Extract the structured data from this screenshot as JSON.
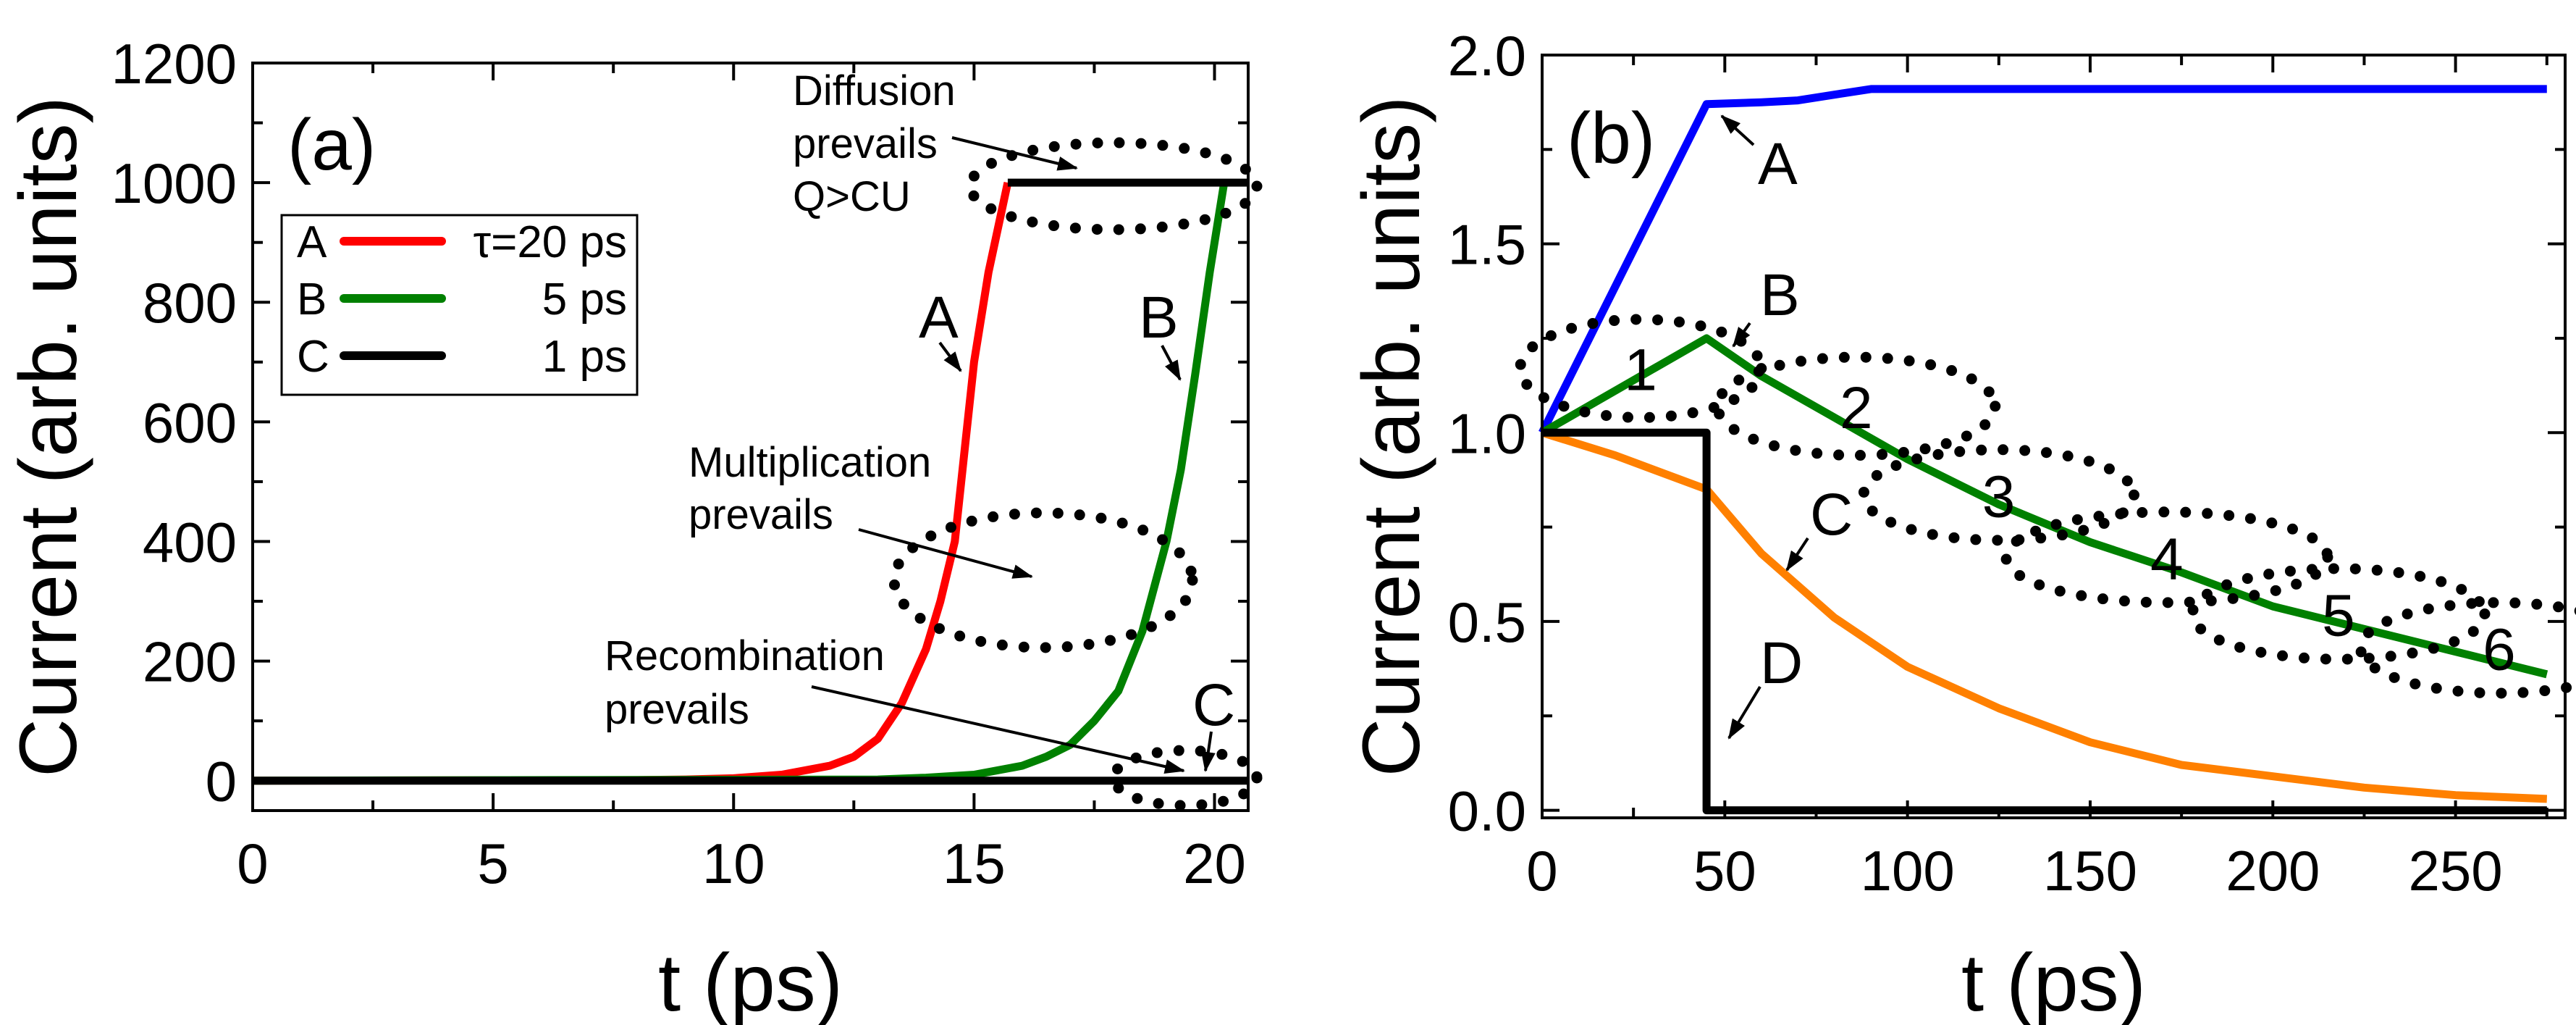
{
  "chart_data": [
    {
      "type": "line",
      "panel_label": "(a)",
      "xlabel": "t (ps)",
      "ylabel": "Current (arb. units)",
      "xlim": [
        0,
        20.7
      ],
      "ylim": [
        -50,
        1200
      ],
      "xticks": [
        0,
        5,
        10,
        15,
        20
      ],
      "yticks": [
        0,
        200,
        400,
        600,
        800,
        1000,
        1200
      ],
      "legend": {
        "placement": "top-left",
        "entries": [
          {
            "key": "A",
            "label": "τ=20 ps",
            "color": "#ff0000"
          },
          {
            "key": "B",
            "label": "5 ps",
            "color": "#008000"
          },
          {
            "key": "C",
            "label": "1 ps",
            "color": "#000000"
          }
        ]
      },
      "series": [
        {
          "name": "A",
          "color": "#ff0000",
          "x": [
            0,
            8,
            9,
            10,
            11,
            12,
            12.5,
            13,
            13.5,
            14,
            14.3,
            14.6,
            14.8,
            15,
            15.3,
            15.7
          ],
          "y": [
            0,
            1,
            2,
            4,
            10,
            25,
            40,
            70,
            130,
            220,
            300,
            400,
            550,
            700,
            850,
            1000
          ]
        },
        {
          "name": "B",
          "color": "#008000",
          "x": [
            0,
            13,
            14,
            15,
            16,
            16.5,
            17,
            17.5,
            18,
            18.5,
            19,
            19.3,
            19.6,
            19.9,
            20.2
          ],
          "y": [
            0,
            2,
            5,
            10,
            25,
            40,
            60,
            100,
            150,
            250,
            400,
            520,
            680,
            850,
            1000
          ]
        },
        {
          "name": "C",
          "color": "#000000",
          "x": [
            0,
            20.7
          ],
          "y": [
            0,
            0
          ]
        },
        {
          "name": "C-saturation",
          "color": "#000000",
          "x": [
            15.7,
            20.7
          ],
          "y": [
            1000,
            1000
          ]
        }
      ],
      "annotations": [
        {
          "id": "diffusion",
          "lines": [
            "Diffusion",
            "prevails",
            "Q>CU"
          ]
        },
        {
          "id": "multiplication",
          "lines": [
            "Multiplication",
            "prevails"
          ]
        },
        {
          "id": "recombination",
          "lines": [
            "Recombination",
            "prevails"
          ]
        },
        {
          "id": "curve-A",
          "lines": [
            "A"
          ]
        },
        {
          "id": "curve-B",
          "lines": [
            "B"
          ]
        },
        {
          "id": "curve-C",
          "lines": [
            "C"
          ]
        }
      ]
    },
    {
      "type": "line",
      "panel_label": "(b)",
      "xlabel": "t (ps)",
      "ylabel": "Current (arb. units)",
      "xlim": [
        0,
        280
      ],
      "ylim": [
        -0.02,
        2.0
      ],
      "xticks": [
        0,
        50,
        100,
        150,
        200,
        250
      ],
      "yticks": [
        "0.0",
        "0.5",
        "1.0",
        "1.5",
        "2.0"
      ],
      "series": [
        {
          "name": "A",
          "color": "#0000ff",
          "x": [
            0,
            45,
            60,
            70,
            80,
            90,
            275
          ],
          "y": [
            1.0,
            1.87,
            1.875,
            1.88,
            1.895,
            1.91,
            1.91
          ]
        },
        {
          "name": "B",
          "color": "#008000",
          "x": [
            0,
            45,
            60,
            80,
            100,
            125,
            150,
            175,
            200,
            225,
            250,
            275
          ],
          "y": [
            1.0,
            1.25,
            1.15,
            1.04,
            0.93,
            0.81,
            0.71,
            0.63,
            0.54,
            0.48,
            0.42,
            0.36
          ]
        },
        {
          "name": "C",
          "color": "#ff8000",
          "x": [
            0,
            20,
            45,
            60,
            80,
            100,
            125,
            150,
            175,
            200,
            225,
            250,
            275
          ],
          "y": [
            1.0,
            0.94,
            0.85,
            0.68,
            0.51,
            0.38,
            0.27,
            0.18,
            0.12,
            0.09,
            0.06,
            0.04,
            0.03
          ]
        },
        {
          "name": "D",
          "color": "#000000",
          "x": [
            0,
            45,
            45,
            275
          ],
          "y": [
            1.0,
            1.0,
            0.0,
            0.0
          ]
        }
      ],
      "annotations": [
        {
          "id": "curve-A",
          "lines": [
            "A"
          ]
        },
        {
          "id": "curve-B",
          "lines": [
            "B"
          ]
        },
        {
          "id": "curve-C",
          "lines": [
            "C"
          ]
        },
        {
          "id": "curve-D",
          "lines": [
            "D"
          ]
        },
        {
          "id": "region-1",
          "lines": [
            "1"
          ]
        },
        {
          "id": "region-2",
          "lines": [
            "2"
          ]
        },
        {
          "id": "region-3",
          "lines": [
            "3"
          ]
        },
        {
          "id": "region-4",
          "lines": [
            "4"
          ]
        },
        {
          "id": "region-5",
          "lines": [
            "5"
          ]
        },
        {
          "id": "region-6",
          "lines": [
            "6"
          ]
        }
      ]
    }
  ]
}
